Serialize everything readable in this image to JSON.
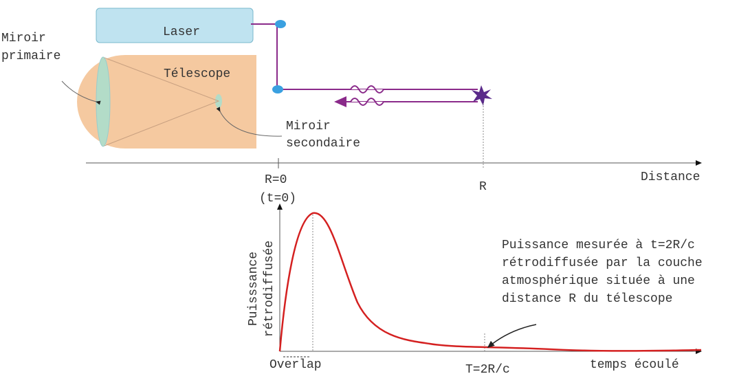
{
  "labels": {
    "laser": "Laser",
    "telescope": "Télescope",
    "primary_mirror": [
      "Miroir",
      "primaire"
    ],
    "secondary_mirror": [
      "Miroir",
      "secondaire"
    ],
    "r0": "R=0",
    "t0": "(t=0)",
    "r": "R",
    "distance": "Distance",
    "y_axis": [
      "Puisssance",
      "rétrodiffusée"
    ],
    "annotation": [
      "Puissance mesurée à t=2R/c",
      "rétrodiffusée par la couche",
      "atmosphérique située à une",
      "distance R du télescope"
    ],
    "overlap": "Overlap",
    "t2rc": "T=2R/c",
    "time": "temps écoulé"
  }
}
